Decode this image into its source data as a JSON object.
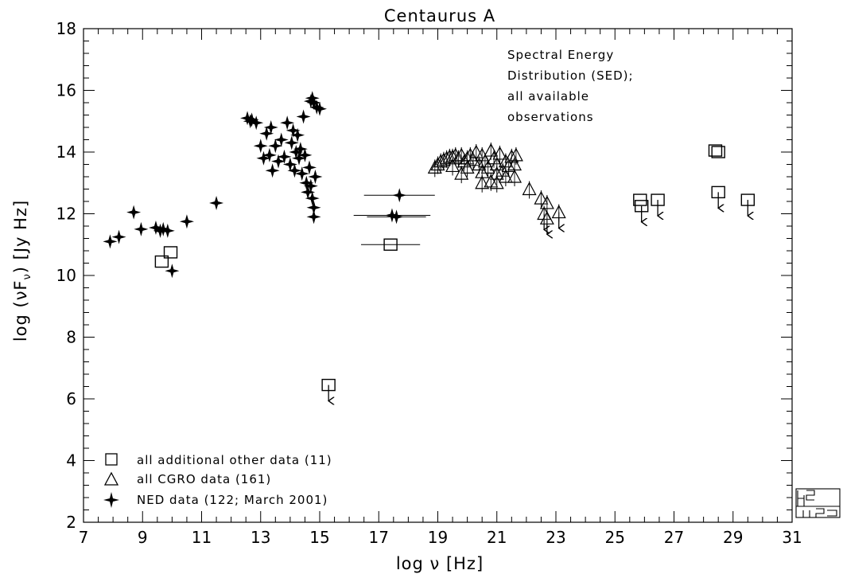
{
  "chart_data": {
    "type": "scatter",
    "title": "Centaurus A",
    "xlabel": "log ν [Hz]",
    "ylabel": "log (νF_ν) [Jy Hz]",
    "xlim": [
      7,
      31
    ],
    "ylim": [
      2,
      18
    ],
    "xticks": [
      7,
      9,
      11,
      13,
      15,
      17,
      19,
      21,
      23,
      25,
      27,
      29,
      31
    ],
    "yticks": [
      2,
      4,
      6,
      8,
      10,
      12,
      14,
      16,
      18
    ],
    "annotation": [
      "Spectral Energy",
      "Distribution (SED);",
      "all available",
      "observations"
    ],
    "legend_position": "bottom-left",
    "series": [
      {
        "name": "all additional other data (11)",
        "marker": "square",
        "points": [
          {
            "x": 9.65,
            "y": 10.45
          },
          {
            "x": 9.95,
            "y": 10.75
          },
          {
            "x": 15.3,
            "y": 6.45,
            "upper_limit": true
          },
          {
            "x": 17.4,
            "y": 11.0,
            "xerr": 1.0
          },
          {
            "x": 25.85,
            "y": 12.45
          },
          {
            "x": 25.9,
            "y": 12.25,
            "upper_limit": true
          },
          {
            "x": 26.45,
            "y": 12.45,
            "upper_limit": true
          },
          {
            "x": 28.4,
            "y": 14.05
          },
          {
            "x": 28.5,
            "y": 14.0
          },
          {
            "x": 28.5,
            "y": 12.7,
            "upper_limit": true
          },
          {
            "x": 29.5,
            "y": 12.45,
            "upper_limit": true
          }
        ]
      },
      {
        "name": "all CGRO data (161)",
        "marker": "triangle",
        "points": [
          {
            "x": 18.9,
            "y": 13.5
          },
          {
            "x": 19.0,
            "y": 13.6
          },
          {
            "x": 19.1,
            "y": 13.7
          },
          {
            "x": 19.2,
            "y": 13.75
          },
          {
            "x": 19.3,
            "y": 13.8
          },
          {
            "x": 19.4,
            "y": 13.85
          },
          {
            "x": 19.5,
            "y": 13.85
          },
          {
            "x": 19.6,
            "y": 13.9
          },
          {
            "x": 19.7,
            "y": 13.8
          },
          {
            "x": 19.8,
            "y": 13.9
          },
          {
            "x": 19.9,
            "y": 13.7
          },
          {
            "x": 20.0,
            "y": 13.8
          },
          {
            "x": 20.1,
            "y": 13.9
          },
          {
            "x": 20.2,
            "y": 13.75
          },
          {
            "x": 20.3,
            "y": 14.0
          },
          {
            "x": 20.4,
            "y": 13.6
          },
          {
            "x": 20.5,
            "y": 13.9
          },
          {
            "x": 20.6,
            "y": 13.7
          },
          {
            "x": 20.7,
            "y": 13.5
          },
          {
            "x": 20.8,
            "y": 14.05
          },
          {
            "x": 20.9,
            "y": 13.8
          },
          {
            "x": 21.0,
            "y": 13.6
          },
          {
            "x": 21.1,
            "y": 13.95
          },
          {
            "x": 21.2,
            "y": 13.4
          },
          {
            "x": 21.3,
            "y": 13.7
          },
          {
            "x": 21.4,
            "y": 13.55
          },
          {
            "x": 21.5,
            "y": 13.85
          },
          {
            "x": 21.6,
            "y": 13.6
          },
          {
            "x": 21.65,
            "y": 13.9
          },
          {
            "x": 19.5,
            "y": 13.55
          },
          {
            "x": 20.0,
            "y": 13.5
          },
          {
            "x": 20.5,
            "y": 13.35
          },
          {
            "x": 21.0,
            "y": 13.3
          },
          {
            "x": 21.3,
            "y": 13.2
          },
          {
            "x": 19.8,
            "y": 13.3
          },
          {
            "x": 20.5,
            "y": 13.0
          },
          {
            "x": 20.8,
            "y": 13.05
          },
          {
            "x": 21.0,
            "y": 13.0
          },
          {
            "x": 21.6,
            "y": 13.2
          },
          {
            "x": 22.1,
            "y": 12.8
          },
          {
            "x": 22.5,
            "y": 12.5
          },
          {
            "x": 22.7,
            "y": 12.35
          },
          {
            "x": 22.6,
            "y": 12.0,
            "upper_limit": true
          },
          {
            "x": 22.7,
            "y": 11.85,
            "upper_limit": true
          },
          {
            "x": 23.1,
            "y": 12.05,
            "upper_limit": true
          }
        ]
      },
      {
        "name": "NED data (122; March 2001)",
        "marker": "star",
        "points": [
          {
            "x": 7.9,
            "y": 11.1
          },
          {
            "x": 8.2,
            "y": 11.25
          },
          {
            "x": 8.7,
            "y": 12.05
          },
          {
            "x": 8.95,
            "y": 11.5
          },
          {
            "x": 9.45,
            "y": 11.55
          },
          {
            "x": 9.6,
            "y": 11.45
          },
          {
            "x": 9.7,
            "y": 11.5
          },
          {
            "x": 9.85,
            "y": 11.45
          },
          {
            "x": 10.0,
            "y": 10.15
          },
          {
            "x": 10.5,
            "y": 11.75
          },
          {
            "x": 11.5,
            "y": 12.35
          },
          {
            "x": 12.55,
            "y": 15.1
          },
          {
            "x": 12.7,
            "y": 15.05
          },
          {
            "x": 12.85,
            "y": 14.95
          },
          {
            "x": 12.65,
            "y": 15.0
          },
          {
            "x": 13.0,
            "y": 14.2
          },
          {
            "x": 13.1,
            "y": 13.8
          },
          {
            "x": 13.2,
            "y": 14.6
          },
          {
            "x": 13.3,
            "y": 13.9
          },
          {
            "x": 13.4,
            "y": 13.4
          },
          {
            "x": 13.35,
            "y": 14.8
          },
          {
            "x": 13.5,
            "y": 14.2
          },
          {
            "x": 13.6,
            "y": 13.7
          },
          {
            "x": 13.7,
            "y": 14.4
          },
          {
            "x": 13.8,
            "y": 13.85
          },
          {
            "x": 13.9,
            "y": 14.95
          },
          {
            "x": 14.0,
            "y": 13.6
          },
          {
            "x": 14.05,
            "y": 14.3
          },
          {
            "x": 14.1,
            "y": 14.7
          },
          {
            "x": 14.15,
            "y": 13.4
          },
          {
            "x": 14.2,
            "y": 14.0
          },
          {
            "x": 14.25,
            "y": 14.55
          },
          {
            "x": 14.3,
            "y": 13.8
          },
          {
            "x": 14.35,
            "y": 14.1
          },
          {
            "x": 14.4,
            "y": 13.3
          },
          {
            "x": 14.45,
            "y": 15.15
          },
          {
            "x": 14.5,
            "y": 13.9
          },
          {
            "x": 14.55,
            "y": 13.0
          },
          {
            "x": 14.6,
            "y": 12.7
          },
          {
            "x": 14.65,
            "y": 13.5
          },
          {
            "x": 14.7,
            "y": 12.9
          },
          {
            "x": 14.75,
            "y": 12.5
          },
          {
            "x": 14.8,
            "y": 12.2
          },
          {
            "x": 14.85,
            "y": 13.2
          },
          {
            "x": 14.8,
            "y": 11.9
          },
          {
            "x": 14.7,
            "y": 15.65
          },
          {
            "x": 14.8,
            "y": 15.6
          },
          {
            "x": 14.9,
            "y": 15.45
          },
          {
            "x": 15.0,
            "y": 15.4
          },
          {
            "x": 14.75,
            "y": 15.75
          },
          {
            "x": 17.7,
            "y": 12.6,
            "xerr": 1.2
          },
          {
            "x": 17.45,
            "y": 11.95,
            "xerr": 1.3
          },
          {
            "x": 17.6,
            "y": 11.9,
            "xerr": 1.0
          }
        ]
      }
    ]
  }
}
